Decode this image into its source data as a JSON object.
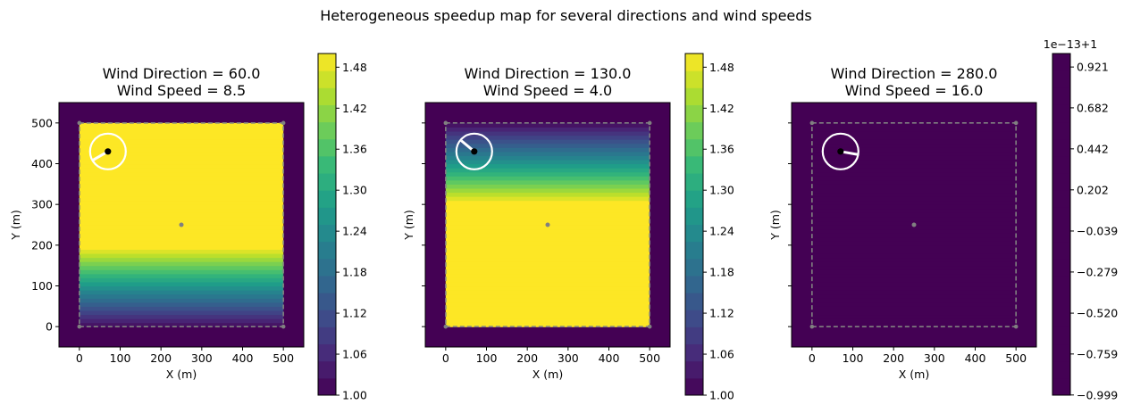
{
  "suptitle": "Heterogeneous speedup map for several directions and wind speeds",
  "chart_data": [
    {
      "type": "heatmap",
      "title_line1": "Wind Direction = 60.0",
      "title_line2": "Wind Speed = 8.5",
      "xlabel": "X (m)",
      "ylabel": "Y (m)",
      "xlim": [
        -50,
        550
      ],
      "ylim": [
        -50,
        550
      ],
      "x_ticks": [
        0,
        100,
        200,
        300,
        400,
        500
      ],
      "y_ticks": [
        0,
        100,
        200,
        300,
        400,
        500
      ],
      "y_ticklabels_visible": true,
      "domain": [
        0,
        500
      ],
      "center_point": [
        250,
        250
      ],
      "gradient": {
        "axis": "y",
        "low_value_y": 0,
        "high_value_y": 200,
        "low": 1.0,
        "high": 1.5
      },
      "colorbar": {
        "min": 1.0,
        "max": 1.5,
        "offset_text": "",
        "tick_values": [
          1.0,
          1.06,
          1.12,
          1.18,
          1.24,
          1.3,
          1.36,
          1.42,
          1.48
        ],
        "tick_labels": [
          "1.00",
          "1.06",
          "1.12",
          "1.18",
          "1.24",
          "1.30",
          "1.36",
          "1.42",
          "1.48"
        ]
      },
      "wind_marker": {
        "x": 70,
        "y": 430,
        "direction_deg": 60.0,
        "arrow": "white",
        "circle": "white"
      }
    },
    {
      "type": "heatmap",
      "title_line1": "Wind Direction = 130.0",
      "title_line2": "Wind Speed = 4.0",
      "xlabel": "X (m)",
      "ylabel": "Y (m)",
      "xlim": [
        -50,
        550
      ],
      "ylim": [
        -50,
        550
      ],
      "x_ticks": [
        0,
        100,
        200,
        300,
        400,
        500
      ],
      "y_ticks": [
        0,
        100,
        200,
        300,
        400,
        500
      ],
      "y_ticklabels_visible": false,
      "domain": [
        0,
        500
      ],
      "center_point": [
        250,
        250
      ],
      "gradient": {
        "axis": "y",
        "low_value_y": 500,
        "high_value_y": 300,
        "low": 1.0,
        "high": 1.5
      },
      "colorbar": {
        "min": 1.0,
        "max": 1.5,
        "offset_text": "",
        "tick_values": [
          1.0,
          1.06,
          1.12,
          1.18,
          1.24,
          1.3,
          1.36,
          1.42,
          1.48
        ],
        "tick_labels": [
          "1.00",
          "1.06",
          "1.12",
          "1.18",
          "1.24",
          "1.30",
          "1.36",
          "1.42",
          "1.48"
        ]
      },
      "wind_marker": {
        "x": 70,
        "y": 430,
        "direction_deg": 130.0,
        "arrow": "white",
        "circle": "white"
      }
    },
    {
      "type": "heatmap",
      "title_line1": "Wind Direction = 280.0",
      "title_line2": "Wind Speed = 16.0",
      "xlabel": "X (m)",
      "ylabel": "Y (m)",
      "xlim": [
        -50,
        550
      ],
      "ylim": [
        -50,
        550
      ],
      "x_ticks": [
        0,
        100,
        200,
        300,
        400,
        500
      ],
      "y_ticks": [
        0,
        100,
        200,
        300,
        400,
        500
      ],
      "y_ticklabels_visible": false,
      "domain": [
        0,
        500
      ],
      "center_point": [
        250,
        250
      ],
      "gradient": {
        "axis": "none",
        "low": 1.0,
        "high": 1.0
      },
      "colorbar": {
        "min": -1.0,
        "max": 1.0,
        "offset_text": "1e−13+1",
        "tick_values": [
          -0.999,
          -0.759,
          -0.52,
          -0.279,
          -0.039,
          0.202,
          0.442,
          0.682,
          0.921
        ],
        "tick_labels": [
          "−0.999",
          "−0.759",
          "−0.520",
          "−0.279",
          "−0.039",
          "0.202",
          "0.442",
          "0.682",
          "0.921"
        ]
      },
      "wind_marker": {
        "x": 70,
        "y": 430,
        "direction_deg": 280.0,
        "arrow": "white",
        "circle": "white"
      }
    }
  ],
  "colors": {
    "viridis_low": "#440154",
    "viridis_high": "#fde725",
    "boundary": "#808080",
    "marker": "#ffffff"
  }
}
